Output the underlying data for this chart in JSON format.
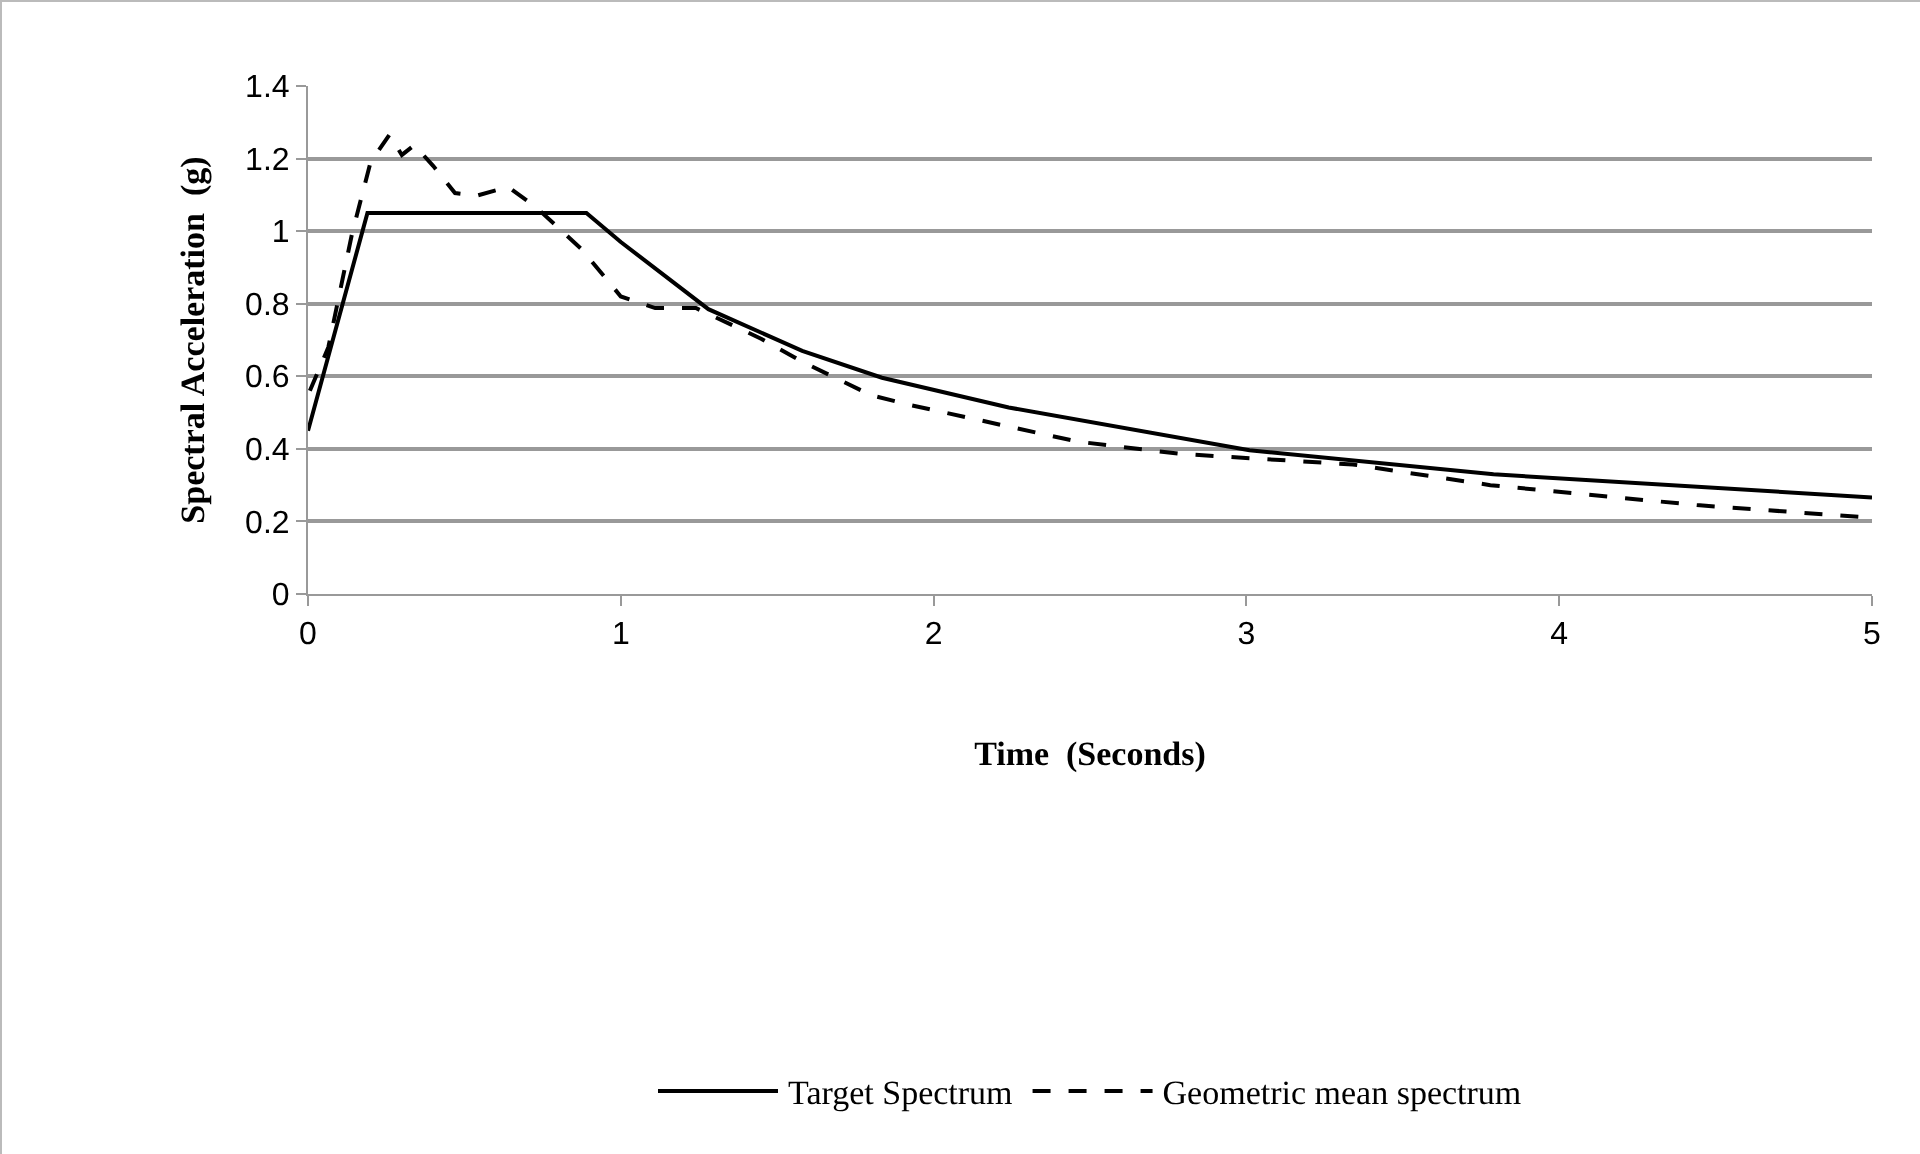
{
  "chart_data": {
    "type": "line",
    "xlabel": "Time  (Seconds)",
    "ylabel": "Spectral Acceleration  (g)",
    "xlim": [
      0,
      5
    ],
    "xticks": [
      0,
      1,
      2,
      3,
      4,
      5
    ],
    "ylim": [
      0,
      1.4
    ],
    "yticks": [
      0,
      0.2,
      0.4,
      0.6,
      0.8,
      1,
      1.2,
      1.4
    ],
    "grid": "y",
    "legend": "bottom",
    "series": [
      {
        "name": "Target Spectrum",
        "color": "#000000",
        "line_style": "solid",
        "x": [
          0,
          0.19,
          0.89,
          1.0,
          1.28,
          1.58,
          1.835,
          2.24,
          3.01,
          3.79,
          5.0
        ],
        "values": [
          0.45,
          1.05,
          1.05,
          0.97,
          0.785,
          0.67,
          0.596,
          0.514,
          0.396,
          0.33,
          0.266
        ]
      },
      {
        "name": "Geometric mean spectrum",
        "color": "#000000",
        "line_style": "dashed",
        "x": [
          0.006,
          0.065,
          0.14,
          0.2,
          0.26,
          0.3,
          0.34,
          0.4,
          0.47,
          0.54,
          0.64,
          0.73,
          0.875,
          1.0,
          1.11,
          1.24,
          1.45,
          1.58,
          1.8,
          1.93,
          2.46,
          2.79,
          3.34,
          3.78,
          4.44,
          5.0
        ],
        "values": [
          0.56,
          0.68,
          0.99,
          1.19,
          1.265,
          1.21,
          1.237,
          1.18,
          1.105,
          1.098,
          1.122,
          1.065,
          0.95,
          0.82,
          0.788,
          0.788,
          0.703,
          0.64,
          0.548,
          0.52,
          0.42,
          0.386,
          0.357,
          0.3,
          0.245,
          0.21
        ]
      }
    ]
  }
}
